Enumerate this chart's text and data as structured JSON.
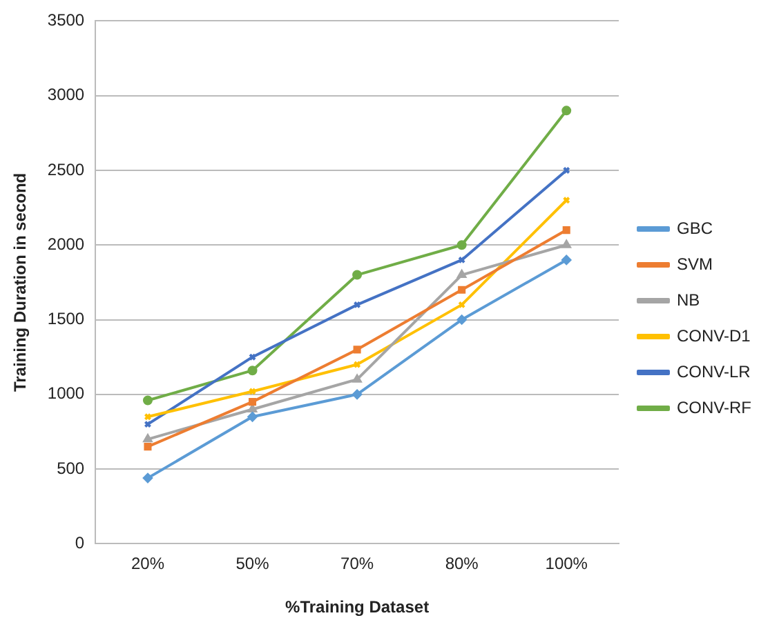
{
  "chart_data": {
    "type": "line",
    "xlabel": "%Training Dataset",
    "ylabel": "Training Duration in second",
    "categories": [
      "20%",
      "50%",
      "70%",
      "80%",
      "100%"
    ],
    "series": [
      {
        "name": "GBC",
        "color": "#5b9bd5",
        "marker": "diamond",
        "values": [
          440,
          850,
          1000,
          1500,
          1900
        ]
      },
      {
        "name": "SVM",
        "color": "#ed7d31",
        "marker": "square",
        "values": [
          650,
          950,
          1300,
          1700,
          2100
        ]
      },
      {
        "name": "NB",
        "color": "#a5a5a5",
        "marker": "triangle",
        "values": [
          700,
          900,
          1100,
          1800,
          2000
        ]
      },
      {
        "name": "CONV-D1",
        "color": "#ffc000",
        "marker": "cross",
        "values": [
          850,
          1020,
          1200,
          1600,
          2300
        ]
      },
      {
        "name": "CONV-LR",
        "color": "#4472c4",
        "marker": "cross",
        "values": [
          800,
          1250,
          1600,
          1900,
          2500
        ]
      },
      {
        "name": "CONV-RF",
        "color": "#70ad47",
        "marker": "circle",
        "values": [
          960,
          1160,
          1800,
          2000,
          2900
        ]
      }
    ],
    "ylim": [
      0,
      3500
    ],
    "yticks": [
      0,
      500,
      1000,
      1500,
      2000,
      2500,
      3000,
      3500
    ],
    "grid": "y",
    "legend": "right",
    "line_style": "solid"
  }
}
